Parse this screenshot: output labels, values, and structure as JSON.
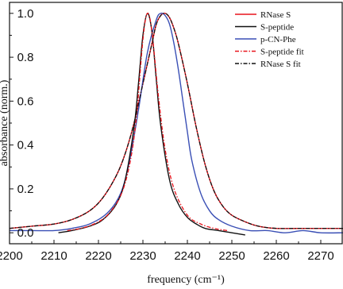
{
  "chart_data": {
    "type": "line",
    "title": "",
    "xlabel": "frequency (cm⁻¹)",
    "ylabel": "absorbance (norm.)",
    "xlim": [
      2200,
      2275
    ],
    "ylim": [
      -0.05,
      1.05
    ],
    "xticks": [
      2200,
      2210,
      2220,
      2230,
      2240,
      2250,
      2260,
      2270
    ],
    "xtick_labels": [
      "2200",
      "2210",
      "2220",
      "2230",
      "2240",
      "2250",
      "2260",
      "2270"
    ],
    "yticks": [
      0.0,
      0.2,
      0.4,
      0.6,
      0.8,
      1.0
    ],
    "ytick_labels": [
      "0.0",
      "0.2",
      "0.4",
      "0.6",
      "0.8",
      "1.0"
    ],
    "grid": false,
    "legend_position": "top-right",
    "series": [
      {
        "name": "RNase S",
        "color": "#e8141c",
        "style": "solid",
        "x": [
          2200,
          2205,
          2210,
          2214,
          2218,
          2221,
          2224,
          2226,
          2228,
          2230,
          2232,
          2233,
          2234,
          2235,
          2236,
          2237,
          2238,
          2240,
          2242,
          2244,
          2246,
          2248,
          2250,
          2253,
          2256,
          2260,
          2265,
          2270,
          2275
        ],
        "y": [
          0.02,
          0.03,
          0.04,
          0.06,
          0.1,
          0.16,
          0.26,
          0.36,
          0.5,
          0.68,
          0.86,
          0.95,
          0.99,
          1.0,
          0.98,
          0.93,
          0.86,
          0.68,
          0.48,
          0.31,
          0.19,
          0.12,
          0.08,
          0.05,
          0.03,
          0.02,
          0.02,
          0.02,
          0.02
        ]
      },
      {
        "name": "S-peptide",
        "color": "#111111",
        "style": "solid",
        "x": [
          2211,
          2214,
          2218,
          2221,
          2224,
          2226,
          2228,
          2229,
          2230,
          2231,
          2232,
          2233,
          2234,
          2236,
          2238,
          2240,
          2242,
          2244,
          2247,
          2250,
          2253
        ],
        "y": [
          0.0,
          0.01,
          0.03,
          0.06,
          0.13,
          0.24,
          0.48,
          0.68,
          0.9,
          1.0,
          0.92,
          0.7,
          0.49,
          0.24,
          0.13,
          0.07,
          0.04,
          0.02,
          0.01,
          0.0,
          -0.01
        ]
      },
      {
        "name": "p-CN-Phe",
        "color": "#3a4fb5",
        "style": "solid",
        "x": [
          2200,
          2205,
          2210,
          2214,
          2218,
          2222,
          2225,
          2227,
          2229,
          2231,
          2233,
          2234,
          2235,
          2236,
          2237,
          2238,
          2239,
          2240,
          2241,
          2243,
          2245,
          2247,
          2250,
          2254,
          2258,
          2262,
          2266,
          2270,
          2275
        ],
        "y": [
          0.01,
          0.01,
          0.01,
          0.02,
          0.04,
          0.09,
          0.18,
          0.33,
          0.56,
          0.82,
          0.97,
          1.0,
          0.99,
          0.95,
          0.86,
          0.74,
          0.6,
          0.46,
          0.33,
          0.18,
          0.1,
          0.06,
          0.03,
          0.01,
          0.01,
          0.0,
          0.01,
          0.0,
          0.0
        ]
      },
      {
        "name": "S-peptide fit",
        "color": "#e8141c",
        "style": "dash-dot",
        "x": [
          2213,
          2216,
          2219,
          2222,
          2225,
          2227,
          2228.5,
          2230,
          2231,
          2232,
          2233.5,
          2235,
          2237,
          2240,
          2243,
          2246,
          2249
        ],
        "y": [
          0.01,
          0.02,
          0.04,
          0.08,
          0.17,
          0.31,
          0.52,
          0.88,
          1.0,
          0.92,
          0.62,
          0.38,
          0.2,
          0.08,
          0.04,
          0.02,
          0.01
        ]
      },
      {
        "name": "RNase S fit",
        "color": "#111111",
        "style": "dash-dot",
        "x": [
          2200,
          2205,
          2210,
          2214,
          2218,
          2221,
          2224,
          2226,
          2228,
          2230,
          2232,
          2233,
          2234,
          2235,
          2236,
          2237,
          2238,
          2240,
          2242,
          2244,
          2246,
          2248,
          2250,
          2253,
          2256,
          2260,
          2265,
          2270,
          2275
        ],
        "y": [
          0.02,
          0.03,
          0.04,
          0.06,
          0.1,
          0.16,
          0.26,
          0.36,
          0.5,
          0.68,
          0.86,
          0.95,
          0.99,
          1.0,
          0.98,
          0.93,
          0.86,
          0.68,
          0.48,
          0.31,
          0.19,
          0.12,
          0.08,
          0.05,
          0.03,
          0.02,
          0.02,
          0.02,
          0.02
        ]
      }
    ]
  }
}
